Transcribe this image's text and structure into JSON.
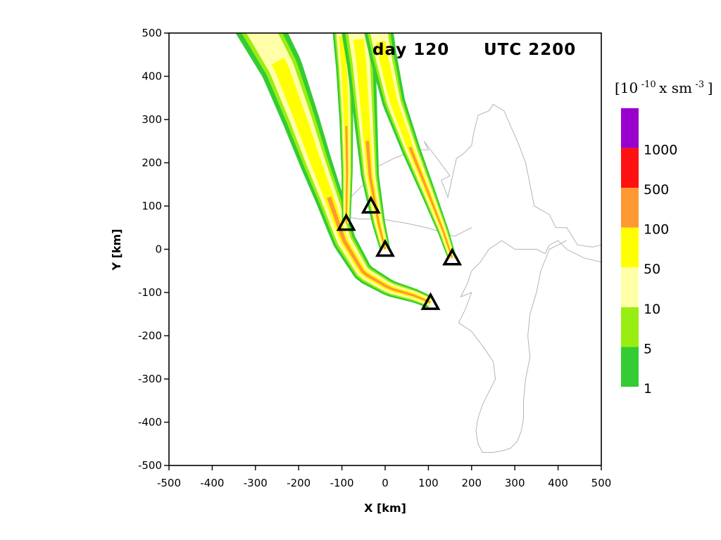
{
  "chart_data": {
    "type": "contour",
    "title_left": "day 120",
    "title_right": "UTC 2200",
    "xlabel": "X [km]",
    "ylabel": "Y [km]",
    "xlim": [
      -500,
      500
    ],
    "ylim": [
      -500,
      500
    ],
    "x_ticks": [
      -500,
      -400,
      -300,
      -200,
      -100,
      0,
      100,
      200,
      300,
      400,
      500
    ],
    "y_ticks": [
      -500,
      -400,
      -300,
      -200,
      -100,
      0,
      100,
      200,
      300,
      400,
      500
    ],
    "grid": false,
    "colorbar": {
      "unit_base": "[10",
      "unit_exp1": "-10",
      "unit_mid": " x sm",
      "unit_exp2": "-3",
      "unit_end": " ]",
      "labels": [
        "1",
        "5",
        "10",
        "50",
        "100",
        "500",
        "1000"
      ],
      "colors": [
        "#33cc33",
        "#99ee11",
        "#ffffaa",
        "#ffff00",
        "#ff9933",
        "#ff1111",
        "#9900cc"
      ]
    },
    "colors": {
      "level_1": "#33cc33",
      "level_5": "#99ee11",
      "level_10": "#ffffaa",
      "level_50": "#ffff00",
      "level_100": "#ff9933",
      "coastline": "#b4b4b4"
    },
    "sources": [
      {
        "x": -90,
        "y": 60
      },
      {
        "x": -33,
        "y": 100
      },
      {
        "x": 0,
        "y": 0
      },
      {
        "x": 155,
        "y": -20
      },
      {
        "x": 105,
        "y": -123
      }
    ],
    "plumes": [
      {
        "path": [
          [
            -300,
            530
          ],
          [
            -240,
            420
          ],
          [
            -195,
            300
          ],
          [
            -160,
            200
          ],
          [
            -130,
            120
          ],
          [
            -95,
            20
          ],
          [
            -50,
            -55
          ],
          [
            10,
            -90
          ],
          [
            70,
            -108
          ],
          [
            105,
            -123
          ]
        ],
        "w_start": 55,
        "w_end": 14
      },
      {
        "path": [
          [
            -105,
            560
          ],
          [
            -95,
            420
          ],
          [
            -90,
            300
          ],
          [
            -88,
            180
          ],
          [
            -90,
            60
          ]
        ],
        "w_start": 22,
        "w_end": 10
      },
      {
        "path": [
          [
            -70,
            560
          ],
          [
            -55,
            430
          ],
          [
            -45,
            300
          ],
          [
            -35,
            170
          ],
          [
            -15,
            60
          ],
          [
            0,
            0
          ]
        ],
        "w_start": 40,
        "w_end": 12
      },
      {
        "path": [
          [
            -25,
            560
          ],
          [
            -5,
            450
          ],
          [
            20,
            340
          ],
          [
            60,
            230
          ],
          [
            100,
            130
          ],
          [
            135,
            40
          ],
          [
            155,
            -20
          ]
        ],
        "w_start": 36,
        "w_end": 10
      }
    ],
    "coastlines": [
      [
        [
          -120,
          80
        ],
        [
          -70,
          130
        ],
        [
          -40,
          160
        ],
        [
          -20,
          190
        ],
        [
          20,
          210
        ],
        [
          70,
          230
        ],
        [
          100,
          230
        ],
        [
          90,
          250
        ],
        [
          150,
          170
        ],
        [
          130,
          160
        ],
        [
          145,
          120
        ],
        [
          165,
          210
        ],
        [
          180,
          220
        ],
        [
          200,
          240
        ],
        [
          205,
          270
        ],
        [
          215,
          310
        ],
        [
          240,
          320
        ],
        [
          250,
          335
        ],
        [
          275,
          320
        ],
        [
          310,
          240
        ],
        [
          325,
          200
        ],
        [
          345,
          100
        ],
        [
          380,
          80
        ],
        [
          395,
          50
        ],
        [
          420,
          50
        ],
        [
          445,
          10
        ],
        [
          480,
          5
        ],
        [
          500,
          10
        ]
      ],
      [
        [
          -120,
          80
        ],
        [
          -60,
          70
        ],
        [
          -10,
          70
        ],
        [
          50,
          60
        ],
        [
          95,
          50
        ],
        [
          130,
          40
        ],
        [
          160,
          30
        ],
        [
          180,
          40
        ],
        [
          200,
          50
        ]
      ],
      [
        [
          500,
          -30
        ],
        [
          460,
          -20
        ],
        [
          440,
          -10
        ],
        [
          420,
          0
        ],
        [
          400,
          20
        ],
        [
          380,
          10
        ],
        [
          370,
          -10
        ],
        [
          350,
          0
        ],
        [
          300,
          0
        ],
        [
          270,
          20
        ],
        [
          240,
          0
        ],
        [
          220,
          -30
        ],
        [
          200,
          -50
        ],
        [
          190,
          -80
        ],
        [
          175,
          -110
        ],
        [
          200,
          -100
        ],
        [
          185,
          -140
        ],
        [
          170,
          -170
        ],
        [
          200,
          -190
        ],
        [
          230,
          -230
        ],
        [
          250,
          -260
        ],
        [
          255,
          -300
        ],
        [
          240,
          -330
        ],
        [
          225,
          -360
        ],
        [
          215,
          -390
        ],
        [
          210,
          -420
        ],
        [
          215,
          -450
        ],
        [
          225,
          -470
        ],
        [
          250,
          -470
        ],
        [
          275,
          -465
        ],
        [
          290,
          -460
        ],
        [
          305,
          -445
        ],
        [
          315,
          -420
        ],
        [
          320,
          -390
        ],
        [
          320,
          -350
        ],
        [
          325,
          -300
        ],
        [
          335,
          -250
        ],
        [
          330,
          -200
        ],
        [
          335,
          -150
        ],
        [
          350,
          -100
        ],
        [
          360,
          -50
        ],
        [
          380,
          0
        ],
        [
          420,
          20
        ]
      ]
    ]
  }
}
